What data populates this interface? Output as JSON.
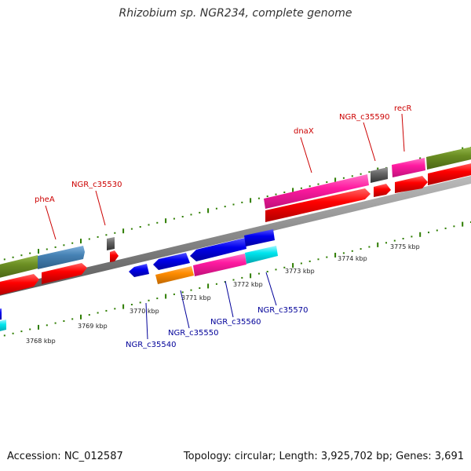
{
  "title": "Rhizobium sp. NGR234, complete genome",
  "footer": {
    "accession": "Accession: NC_012587",
    "topology": "Topology: circular; Length: 3,925,702 bp; Genes: 3,691"
  },
  "scale_labels": [
    "3768 kbp",
    "3769 kbp",
    "3770 kbp",
    "3771 kbp",
    "3772 kbp",
    "3773 kbp",
    "3774 kbp",
    "3775 kbp"
  ],
  "gene_labels_top": [
    "pheA",
    "NGR_c35530",
    "dnaX",
    "NGR_c35590",
    "recR"
  ],
  "gene_labels_bottom": [
    "NGR_c35540",
    "NGR_c35550",
    "NGR_c35560",
    "NGR_c35570"
  ],
  "colors": {
    "backbone": "#888888",
    "forward_label": "#cc0000",
    "reverse_label": "#000099",
    "tick": "#2e7d00",
    "cds": "#ff0000",
    "gene": "#ff1aa0",
    "blue_gene": "#0000ee",
    "steel_gene": "#4682b4",
    "olive_gene": "#6b8e23",
    "orange_gene": "#ff8c00",
    "cyan_gene": "#00e5ee",
    "gray_gene": "#555555"
  }
}
